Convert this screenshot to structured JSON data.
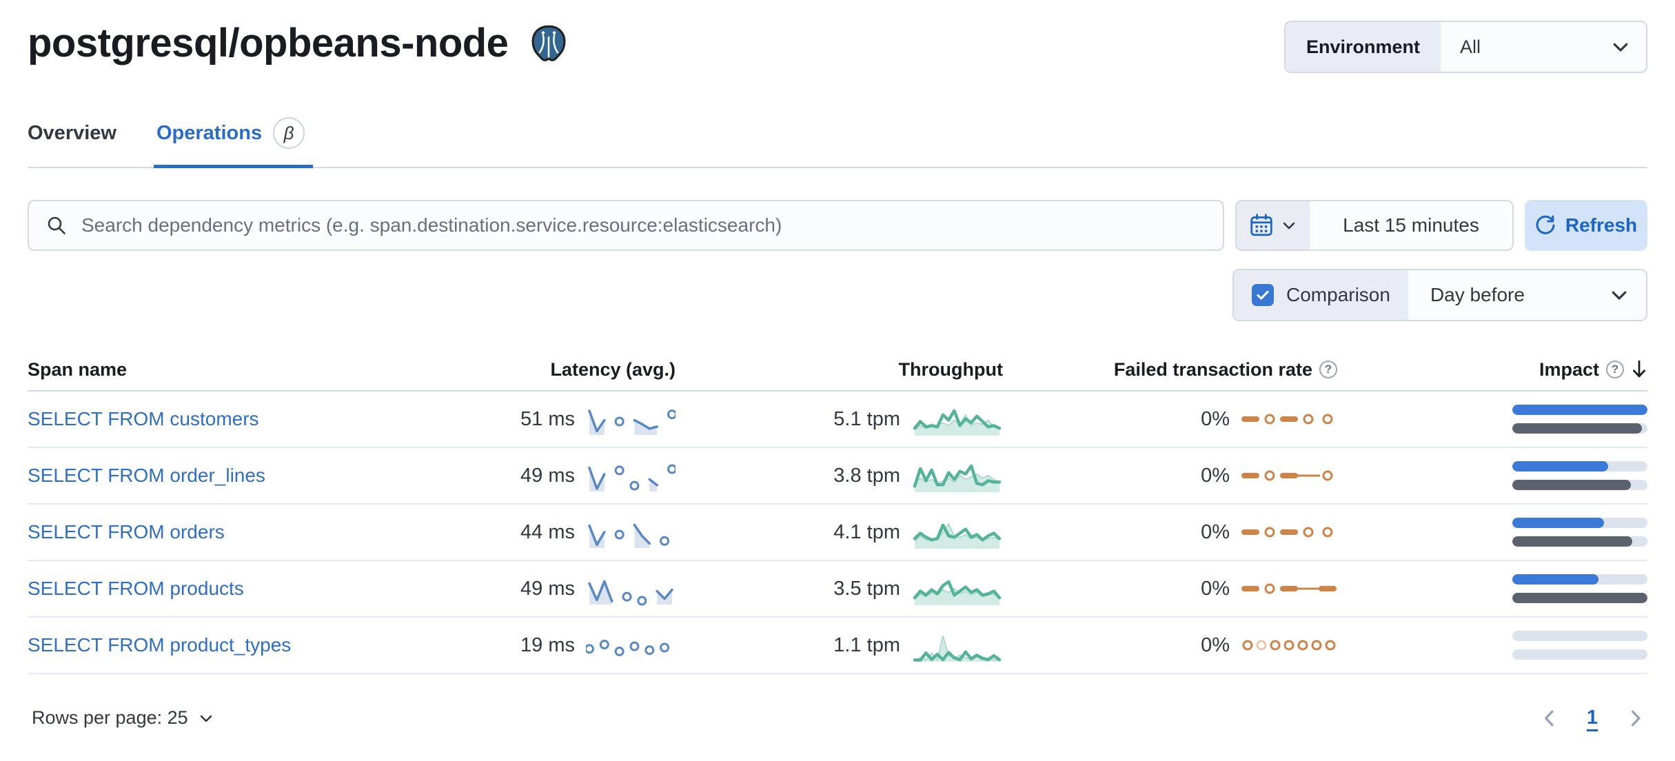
{
  "page": {
    "title": "postgresql/opbeans-node"
  },
  "environment": {
    "label": "Environment",
    "value": "All"
  },
  "tabs": [
    {
      "label": "Overview",
      "active": false
    },
    {
      "label": "Operations",
      "active": true,
      "badge": "β"
    }
  ],
  "toolbar": {
    "search_placeholder": "Search dependency metrics (e.g. span.destination.service.resource:elasticsearch)",
    "time_range": "Last 15 minutes",
    "refresh_label": "Refresh"
  },
  "comparison": {
    "label": "Comparison",
    "checked": true,
    "value": "Day before"
  },
  "table": {
    "headers": {
      "span": "Span name",
      "latency": "Latency (avg.)",
      "throughput": "Throughput",
      "failed": "Failed transaction rate",
      "impact": "Impact"
    },
    "rows": [
      {
        "span_name": "SELECT FROM customers",
        "latency": "51 ms",
        "throughput": "5.1 tpm",
        "failed_rate": "0%",
        "impact_pct": 100,
        "impact_prev_pct": 96,
        "latency_spark": {
          "curr": [
            0.92,
            0.12,
            0.55,
            null,
            0.5,
            null,
            0.55,
            0.4,
            0.22,
            0.3,
            null,
            0.78
          ]
        },
        "throughput_spark": {
          "prev": [
            0.2,
            0.35,
            0.25,
            0.3,
            0.35,
            0.45,
            0.35,
            0.55,
            0.4,
            0.75,
            0.35,
            0.45,
            0.4,
            0.55,
            0.3,
            0.25
          ],
          "curr": [
            0.25,
            0.5,
            0.3,
            0.35,
            0.3,
            0.75,
            0.55,
            0.9,
            0.35,
            0.6,
            0.45,
            0.7,
            0.5,
            0.3,
            0.35,
            0.25
          ]
        },
        "failed_spark": [
          "dash",
          "dot",
          "dash",
          "dot",
          "dot"
        ]
      },
      {
        "span_name": "SELECT FROM order_lines",
        "latency": "49 ms",
        "throughput": "3.8 tpm",
        "failed_rate": "0%",
        "impact_pct": 71,
        "impact_prev_pct": 88,
        "latency_spark": {
          "curr": [
            0.9,
            0.08,
            0.65,
            null,
            0.8,
            null,
            0.2,
            null,
            0.45,
            0.22,
            null,
            0.85
          ]
        },
        "throughput_spark": {
          "prev": [
            0.3,
            0.5,
            0.35,
            0.45,
            0.3,
            0.4,
            0.5,
            0.35,
            0.6,
            0.45,
            0.55,
            0.65,
            0.5,
            0.6,
            0.45,
            0.35
          ],
          "curr": [
            0.2,
            0.85,
            0.4,
            0.8,
            0.25,
            0.25,
            0.7,
            0.45,
            0.75,
            0.65,
            0.95,
            0.3,
            0.25,
            0.4,
            0.35,
            0.35
          ]
        },
        "failed_spark": [
          "dash",
          "dot",
          "dash",
          "line",
          "dot"
        ]
      },
      {
        "span_name": "SELECT FROM orders",
        "latency": "44 ms",
        "throughput": "4.1 tpm",
        "failed_rate": "0%",
        "impact_pct": 68,
        "impact_prev_pct": 89,
        "latency_spark": {
          "curr": [
            0.85,
            0.1,
            0.6,
            null,
            0.5,
            null,
            0.88,
            0.45,
            0.15,
            null,
            0.25,
            null
          ]
        },
        "throughput_spark": {
          "prev": [
            0.25,
            0.45,
            0.3,
            0.35,
            0.3,
            0.6,
            0.9,
            0.45,
            0.4,
            0.5,
            0.35,
            0.4,
            0.3,
            0.35,
            0.4,
            0.3
          ],
          "curr": [
            0.35,
            0.55,
            0.4,
            0.3,
            0.35,
            0.85,
            0.45,
            0.4,
            0.55,
            0.7,
            0.4,
            0.5,
            0.3,
            0.45,
            0.55,
            0.35
          ]
        },
        "failed_spark": [
          "dash",
          "dot",
          "dash",
          "dot",
          "dot"
        ]
      },
      {
        "span_name": "SELECT FROM products",
        "latency": "49 ms",
        "throughput": "3.5 tpm",
        "failed_rate": "0%",
        "impact_pct": 64,
        "impact_prev_pct": 100,
        "latency_spark": {
          "curr": [
            0.8,
            0.15,
            0.88,
            0.1,
            null,
            0.28,
            null,
            0.12,
            null,
            0.5,
            0.2,
            0.55
          ]
        },
        "throughput_spark": {
          "prev": [
            0.2,
            0.4,
            0.3,
            0.45,
            0.35,
            0.55,
            0.45,
            0.6,
            0.4,
            0.5,
            0.35,
            0.45,
            0.3,
            0.35,
            0.4,
            0.25
          ],
          "curr": [
            0.25,
            0.5,
            0.35,
            0.55,
            0.4,
            0.7,
            0.85,
            0.35,
            0.5,
            0.65,
            0.45,
            0.55,
            0.35,
            0.4,
            0.5,
            0.25
          ]
        },
        "failed_spark": [
          "dash",
          "dot",
          "dash",
          "line",
          "dash"
        ]
      },
      {
        "span_name": "SELECT FROM product_types",
        "latency": "19 ms",
        "throughput": "1.1 tpm",
        "failed_rate": "0%",
        "impact_pct": 0,
        "impact_prev_pct": 0,
        "latency_spark": {
          "curr": [
            0.45,
            null,
            0.62,
            null,
            0.35,
            null,
            0.55,
            null,
            0.4,
            null,
            0.5,
            null
          ]
        },
        "throughput_spark": {
          "prev": [
            0.04,
            0.12,
            0.05,
            0.3,
            0.05,
            0.95,
            0.2,
            0.12,
            0.22,
            0.12,
            0.06,
            0.16,
            0.05,
            0.12,
            0.06,
            0.04
          ],
          "curr": [
            0.04,
            0.04,
            0.3,
            0.06,
            0.25,
            0.05,
            0.32,
            0.12,
            0.05,
            0.34,
            0.08,
            0.22,
            0.1,
            0.05,
            0.2,
            0.05
          ]
        },
        "failed_spark": [
          "dot",
          "dotlight",
          "dot",
          "dot",
          "dot",
          "dot",
          "dot"
        ]
      }
    ]
  },
  "footer": {
    "rows_per_page": "Rows per page: 25",
    "current_page": "1"
  },
  "colors": {
    "primary": "#2b6cc6",
    "link": "#2e6ec4",
    "latency_line": "#5988c5",
    "latency_fill": "#dbe3ef",
    "throughput_line": "#54b399",
    "throughput_fill": "rgba(84,179,153,0.26)",
    "error": "#cc8449",
    "impact_bar": "#3b7ad9",
    "impact_prev": "#5b626d",
    "impact_track": "#dde3ed"
  }
}
